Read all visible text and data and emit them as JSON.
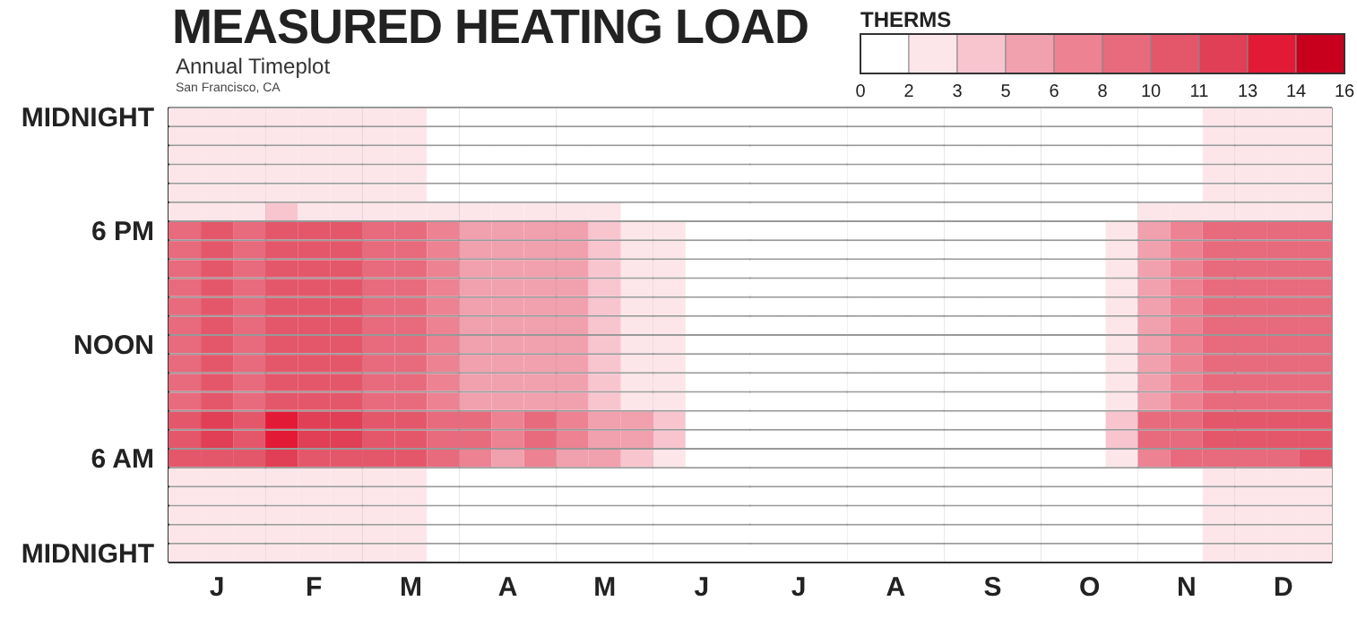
{
  "chart_data": {
    "type": "heatmap",
    "title": "MEASURED HEATING LOAD",
    "subtitle": "Annual Timeplot",
    "annotations": [
      "San Francisco, CA"
    ],
    "categories": [
      null,
      "J",
      null,
      null,
      "F",
      null,
      null,
      "M",
      null,
      null,
      "A",
      null,
      null,
      "M",
      null,
      null,
      "J",
      null,
      null,
      "J",
      null,
      null,
      "A",
      null,
      null,
      "S",
      null,
      null,
      "O",
      null,
      null,
      "N",
      null,
      null,
      "D",
      null
    ],
    "y_categories": [
      "MIDNIGHT",
      null,
      null,
      null,
      null,
      null,
      "6 PM",
      null,
      null,
      null,
      null,
      null,
      "NOON",
      null,
      null,
      null,
      null,
      null,
      "6 AM",
      null,
      null,
      null,
      null,
      "MIDNIGHT"
    ],
    "clabel": "THERMS",
    "clim": [
      0,
      16
    ],
    "cticks": [
      {
        "value": 0,
        "label": "0"
      },
      {
        "value": 1.6,
        "label": "2"
      },
      {
        "value": 3.2,
        "label": "3"
      },
      {
        "value": 4.8,
        "label": "5"
      },
      {
        "value": 6.4,
        "label": "6"
      },
      {
        "value": 8,
        "label": "8"
      },
      {
        "value": 9.6,
        "label": "10"
      },
      {
        "value": 11.2,
        "label": "11"
      },
      {
        "value": 12.8,
        "label": "13"
      },
      {
        "value": 14.4,
        "label": "14"
      },
      {
        "value": 16,
        "label": "16"
      }
    ],
    "colors": [
      "#ffffff",
      "#fde6ea",
      "#f8c5cf",
      "#f1a0ae",
      "#ec8292",
      "#e86a7d",
      "#e4576b",
      "#e03f55",
      "#e21a35",
      "#c8001e"
    ],
    "grid": true,
    "cells": [
      [
        2,
        2,
        2,
        3,
        2,
        2,
        2,
        2,
        1,
        1,
        1,
        1,
        1,
        1,
        0,
        0,
        0,
        0,
        0,
        0,
        0,
        0,
        0,
        0,
        0,
        0,
        0,
        0,
        0,
        0,
        1,
        1,
        2,
        2,
        2,
        2
      ],
      [
        2,
        2,
        2,
        3,
        2,
        2,
        2,
        2,
        1,
        1,
        1,
        1,
        1,
        1,
        0,
        0,
        0,
        0,
        0,
        0,
        0,
        0,
        0,
        0,
        0,
        0,
        0,
        0,
        0,
        0,
        1,
        1,
        2,
        2,
        2,
        2
      ],
      [
        2,
        2,
        2,
        3,
        2,
        2,
        2,
        2,
        1,
        1,
        1,
        1,
        1,
        1,
        0,
        0,
        0,
        0,
        0,
        0,
        0,
        0,
        0,
        0,
        0,
        0,
        0,
        0,
        0,
        0,
        1,
        1,
        2,
        2,
        2,
        2
      ],
      [
        2,
        2,
        2,
        3,
        2,
        2,
        2,
        2,
        1,
        1,
        1,
        1,
        1,
        1,
        0,
        0,
        0,
        0,
        0,
        0,
        0,
        0,
        0,
        0,
        0,
        0,
        0,
        0,
        0,
        0,
        1,
        1,
        2,
        2,
        2,
        2
      ],
      [
        2,
        2,
        2,
        3,
        2,
        2,
        2,
        2,
        1,
        1,
        1,
        1,
        1,
        1,
        0,
        0,
        0,
        0,
        0,
        0,
        0,
        0,
        0,
        0,
        0,
        0,
        0,
        0,
        0,
        0,
        1,
        1,
        2,
        2,
        2,
        2
      ],
      [
        3,
        3,
        3,
        4,
        3,
        3,
        3,
        3,
        2,
        2,
        2,
        2,
        2,
        2,
        1,
        1,
        0,
        0,
        0,
        0,
        0,
        0,
        0,
        0,
        0,
        0,
        0,
        0,
        0,
        0,
        2,
        2,
        3,
        3,
        3,
        3
      ],
      [
        9,
        10,
        9,
        11,
        10,
        10,
        9,
        9,
        7,
        6,
        5,
        6,
        5,
        4,
        3,
        2,
        0,
        0,
        0,
        0,
        0,
        0,
        0,
        0,
        0,
        0,
        0,
        0,
        0,
        2,
        6,
        7,
        8,
        8,
        8,
        9
      ],
      [
        9,
        10,
        9,
        11,
        10,
        10,
        9,
        9,
        7,
        6,
        5,
        6,
        5,
        4,
        3,
        2,
        0,
        0,
        0,
        0,
        0,
        0,
        0,
        0,
        0,
        0,
        0,
        0,
        0,
        2,
        6,
        7,
        8,
        8,
        8,
        9
      ],
      [
        9,
        10,
        9,
        11,
        10,
        10,
        9,
        9,
        7,
        6,
        5,
        6,
        5,
        4,
        3,
        2,
        0,
        0,
        0,
        0,
        0,
        0,
        0,
        0,
        0,
        0,
        0,
        0,
        0,
        2,
        6,
        7,
        8,
        8,
        8,
        9
      ],
      [
        9,
        10,
        9,
        11,
        10,
        10,
        9,
        9,
        7,
        6,
        5,
        6,
        5,
        4,
        3,
        2,
        0,
        0,
        0,
        0,
        0,
        0,
        0,
        0,
        0,
        0,
        0,
        0,
        0,
        2,
        6,
        7,
        8,
        8,
        8,
        9
      ],
      [
        9,
        10,
        9,
        11,
        10,
        10,
        9,
        9,
        7,
        6,
        5,
        6,
        5,
        4,
        3,
        2,
        0,
        0,
        0,
        0,
        0,
        0,
        0,
        0,
        0,
        0,
        0,
        0,
        0,
        2,
        6,
        7,
        8,
        8,
        8,
        9
      ],
      [
        9,
        10,
        9,
        11,
        10,
        10,
        9,
        9,
        7,
        6,
        5,
        6,
        5,
        4,
        3,
        2,
        0,
        0,
        0,
        0,
        0,
        0,
        0,
        0,
        0,
        0,
        0,
        0,
        0,
        2,
        6,
        7,
        8,
        8,
        8,
        9
      ],
      [
        9,
        10,
        9,
        11,
        10,
        10,
        9,
        9,
        7,
        6,
        5,
        6,
        5,
        4,
        3,
        2,
        0,
        0,
        0,
        0,
        0,
        0,
        0,
        0,
        0,
        0,
        0,
        0,
        0,
        2,
        6,
        7,
        8,
        8,
        8,
        9
      ],
      [
        9,
        10,
        9,
        11,
        10,
        10,
        9,
        9,
        7,
        6,
        5,
        6,
        5,
        4,
        3,
        2,
        0,
        0,
        0,
        0,
        0,
        0,
        0,
        0,
        0,
        0,
        0,
        0,
        0,
        2,
        6,
        7,
        8,
        8,
        8,
        9
      ],
      [
        9,
        10,
        9,
        11,
        10,
        10,
        9,
        9,
        7,
        6,
        5,
        6,
        5,
        4,
        3,
        2,
        0,
        0,
        0,
        0,
        0,
        0,
        0,
        0,
        0,
        0,
        0,
        0,
        0,
        2,
        6,
        7,
        8,
        8,
        8,
        9
      ],
      [
        9,
        10,
        9,
        11,
        10,
        10,
        9,
        9,
        7,
        6,
        5,
        6,
        5,
        4,
        3,
        2,
        0,
        0,
        0,
        0,
        0,
        0,
        0,
        0,
        0,
        0,
        0,
        0,
        0,
        2,
        6,
        7,
        8,
        8,
        8,
        9
      ],
      [
        11,
        12,
        11,
        13,
        12,
        12,
        11,
        11,
        9,
        8,
        7,
        8,
        7,
        6,
        5,
        4,
        0,
        0,
        0,
        0,
        0,
        0,
        0,
        0,
        0,
        0,
        0,
        0,
        0,
        4,
        8,
        9,
        10,
        10,
        10,
        11
      ],
      [
        11,
        12,
        11,
        13,
        12,
        12,
        11,
        11,
        9,
        8,
        7,
        8,
        7,
        6,
        5,
        4,
        0,
        0,
        0,
        0,
        0,
        0,
        0,
        0,
        0,
        0,
        0,
        0,
        0,
        4,
        8,
        9,
        10,
        10,
        10,
        11
      ],
      [
        10,
        11,
        10,
        12,
        11,
        11,
        10,
        10,
        8,
        7,
        6,
        7,
        6,
        5,
        4,
        3,
        0,
        0,
        0,
        0,
        0,
        0,
        0,
        0,
        0,
        0,
        0,
        0,
        0,
        3,
        7,
        8,
        9,
        9,
        9,
        10
      ],
      [
        2,
        2,
        2,
        3,
        2,
        2,
        2,
        2,
        1,
        1,
        1,
        1,
        1,
        1,
        0,
        0,
        0,
        0,
        0,
        0,
        0,
        0,
        0,
        0,
        0,
        0,
        0,
        0,
        0,
        0,
        1,
        1,
        2,
        2,
        2,
        2
      ],
      [
        2,
        2,
        2,
        3,
        2,
        2,
        2,
        2,
        1,
        1,
        1,
        1,
        1,
        1,
        0,
        0,
        0,
        0,
        0,
        0,
        0,
        0,
        0,
        0,
        0,
        0,
        0,
        0,
        0,
        0,
        1,
        1,
        2,
        2,
        2,
        2
      ],
      [
        2,
        2,
        2,
        3,
        2,
        2,
        2,
        2,
        1,
        1,
        1,
        1,
        1,
        1,
        0,
        0,
        0,
        0,
        0,
        0,
        0,
        0,
        0,
        0,
        0,
        0,
        0,
        0,
        0,
        0,
        1,
        1,
        2,
        2,
        2,
        2
      ],
      [
        2,
        2,
        2,
        3,
        2,
        2,
        2,
        2,
        1,
        1,
        1,
        1,
        1,
        1,
        0,
        0,
        0,
        0,
        0,
        0,
        0,
        0,
        0,
        0,
        0,
        0,
        0,
        0,
        0,
        0,
        1,
        1,
        2,
        2,
        2,
        2
      ],
      [
        2,
        2,
        2,
        3,
        2,
        2,
        2,
        2,
        1,
        1,
        1,
        1,
        1,
        1,
        0,
        0,
        0,
        0,
        0,
        0,
        0,
        0,
        0,
        0,
        0,
        0,
        0,
        0,
        0,
        0,
        1,
        1,
        2,
        2,
        2,
        2
      ]
    ]
  }
}
